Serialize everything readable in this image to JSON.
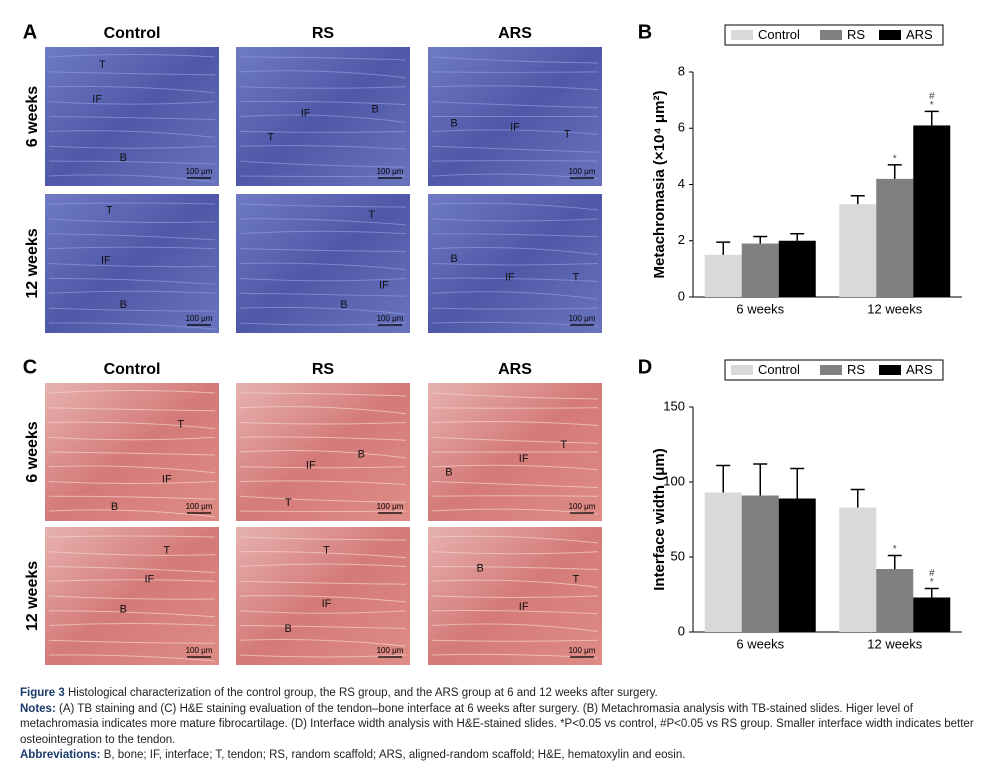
{
  "figure_panels": [
    {
      "label": "A",
      "columns": [
        "Control",
        "RS",
        "ARS"
      ],
      "rows": [
        "6 weeks",
        "12 weeks"
      ],
      "scale_bar": "100 μm",
      "stain": "TB",
      "images": [
        [
          {
            "labels": [
              "T",
              "IF",
              "B"
            ]
          },
          {
            "labels": [
              "IF",
              "B",
              "T"
            ]
          },
          {
            "labels": [
              "B",
              "IF",
              "T"
            ]
          }
        ],
        [
          {
            "labels": [
              "T",
              "IF",
              "B"
            ]
          },
          {
            "labels": [
              "T",
              "B",
              "IF"
            ]
          },
          {
            "labels": [
              "B",
              "IF",
              "T"
            ]
          }
        ]
      ]
    },
    {
      "label": "C",
      "columns": [
        "Control",
        "RS",
        "ARS"
      ],
      "rows": [
        "6 weeks",
        "12 weeks"
      ],
      "scale_bar": "100 μm",
      "stain": "HE",
      "images": [
        [
          {
            "labels": [
              "T",
              "IF",
              "B"
            ]
          },
          {
            "labels": [
              "IF",
              "B",
              "T"
            ]
          },
          {
            "labels": [
              "B",
              "IF",
              "T"
            ]
          }
        ],
        [
          {
            "labels": [
              "T",
              "IF",
              "B"
            ]
          },
          {
            "labels": [
              "T",
              "IF",
              "B"
            ]
          },
          {
            "labels": [
              "B",
              "IF",
              "T"
            ]
          }
        ]
      ]
    }
  ],
  "chart_data": [
    {
      "type": "bar",
      "panel_label": "B",
      "ylabel": "Metachromasia (×10⁴ μm²)",
      "categories": [
        "6 weeks",
        "12 weeks"
      ],
      "series": [
        {
          "name": "Control",
          "color": "#d9d9d9",
          "values": [
            1.5,
            3.3
          ],
          "errors": [
            0.45,
            0.3
          ],
          "sig": [
            [],
            []
          ]
        },
        {
          "name": "RS",
          "color": "#808080",
          "values": [
            1.9,
            4.2
          ],
          "errors": [
            0.25,
            0.5
          ],
          "sig": [
            [],
            [
              "*"
            ]
          ]
        },
        {
          "name": "ARS",
          "color": "#000000",
          "values": [
            2.0,
            6.1
          ],
          "errors": [
            0.25,
            0.5
          ],
          "sig": [
            [],
            [
              "#",
              "*"
            ]
          ]
        }
      ],
      "ylim": [
        0,
        8
      ],
      "yticks": [
        0,
        2,
        4,
        6,
        8
      ],
      "legend": "top"
    },
    {
      "type": "bar",
      "panel_label": "D",
      "ylabel": "Interface width (μm)",
      "categories": [
        "6 weeks",
        "12 weeks"
      ],
      "series": [
        {
          "name": "Control",
          "color": "#d9d9d9",
          "values": [
            93,
            83
          ],
          "errors": [
            18,
            12
          ],
          "sig": [
            [],
            []
          ]
        },
        {
          "name": "RS",
          "color": "#808080",
          "values": [
            91,
            42
          ],
          "errors": [
            21,
            9
          ],
          "sig": [
            [],
            [
              "*"
            ]
          ]
        },
        {
          "name": "ARS",
          "color": "#000000",
          "values": [
            89,
            23
          ],
          "errors": [
            20,
            6
          ],
          "sig": [
            [],
            [
              "#",
              "*"
            ]
          ]
        }
      ],
      "ylim": [
        0,
        150
      ],
      "yticks": [
        0,
        50,
        100,
        150
      ],
      "legend": "top"
    }
  ],
  "caption": {
    "figure_label": "Figure 3",
    "title": "Histological characterization of the control group, the RS group, and the ARS group at 6 and 12 weeks after surgery.",
    "notes_label": "Notes:",
    "notes": "(A) TB staining and (C) H&E staining evaluation of the tendon–bone interface at 6 weeks after surgery. (B) Metachromasia analysis with TB-stained slides. Higer level of metachromasia indicates more mature fibrocartilage. (D) Interface width analysis with H&E-stained slides. *P<0.05 vs control, #P<0.05 vs RS group. Smaller interface width indicates better osteointegration to the tendon.",
    "abbreviations_label": "Abbreviations:",
    "abbreviations": "B, bone; IF, interface; T, tendon; RS, random scaffold; ARS, aligned-random scaffold; H&E, hematoxylin and eosin."
  }
}
